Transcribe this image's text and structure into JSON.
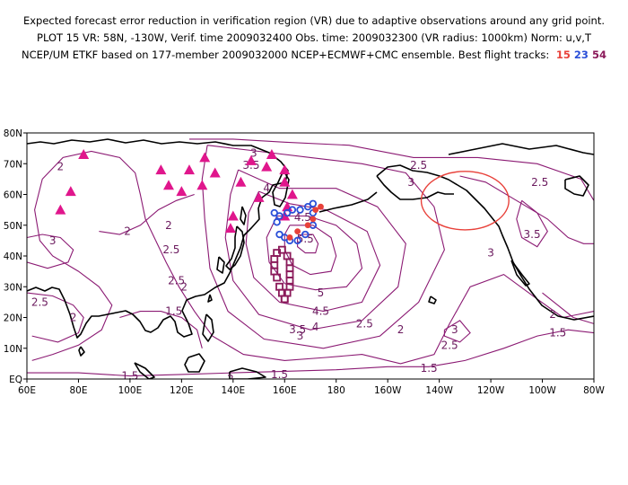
{
  "title": {
    "line1": "Expected forecast error reduction in verification region (VR) due to adaptive observations around any grid point.",
    "line2": "PLOT 15 VR: 58N, -130W, Verif. time 2009032400 Obs. time: 2009032300 (VR radius: 1000km) Norm: u,v,T",
    "line3": "NCEP/UM ETKF based on 177-member 2009032000 NCEP+ECMWF+CMC ensemble. Best flight tracks:",
    "tracks": [
      {
        "label": "15",
        "color": "#e8413a"
      },
      {
        "label": "23",
        "color": "#2a4fd8"
      },
      {
        "label": "54",
        "color": "#8b1a5a"
      }
    ]
  },
  "map": {
    "lon_range": [
      60,
      280
    ],
    "lat_range": [
      0,
      80
    ],
    "x_ticks": [
      "60E",
      "80E",
      "100E",
      "120E",
      "140E",
      "160E",
      "180",
      "160W",
      "140W",
      "120W",
      "100W",
      "80W"
    ],
    "y_ticks": [
      "EQ",
      "10N",
      "20N",
      "30N",
      "40N",
      "50N",
      "60N",
      "70N",
      "80N"
    ],
    "contour_color": "#8b1a73",
    "verification_region_color": "#e8413a",
    "contour_labels": [
      {
        "text": "3",
        "lon": 148,
        "lat": 73.5
      },
      {
        "text": "3.5",
        "lon": 147,
        "lat": 69.5
      },
      {
        "text": "2",
        "lon": 73,
        "lat": 69
      },
      {
        "text": "4",
        "lon": 153,
        "lat": 62
      },
      {
        "text": "4.5",
        "lon": 167,
        "lat": 52.5
      },
      {
        "text": "5.5",
        "lon": 168,
        "lat": 45.5
      },
      {
        "text": "2",
        "lon": 99,
        "lat": 48
      },
      {
        "text": "2",
        "lon": 115,
        "lat": 50
      },
      {
        "text": "3",
        "lon": 70,
        "lat": 45
      },
      {
        "text": "2.5",
        "lon": 116,
        "lat": 42
      },
      {
        "text": "2.5",
        "lon": 118,
        "lat": 32
      },
      {
        "text": "2",
        "lon": 121,
        "lat": 30
      },
      {
        "text": "1.5",
        "lon": 117,
        "lat": 22
      },
      {
        "text": "2.5",
        "lon": 65,
        "lat": 25
      },
      {
        "text": "2",
        "lon": 78,
        "lat": 20
      },
      {
        "text": "5",
        "lon": 174,
        "lat": 28
      },
      {
        "text": "4.5",
        "lon": 174,
        "lat": 22
      },
      {
        "text": "4",
        "lon": 172,
        "lat": 17
      },
      {
        "text": "3.5",
        "lon": 165,
        "lat": 16
      },
      {
        "text": "3",
        "lon": 166,
        "lat": 14
      },
      {
        "text": "2.5",
        "lon": 191,
        "lat": 18
      },
      {
        "text": "2",
        "lon": 205,
        "lat": 16
      },
      {
        "text": "3",
        "lon": 226,
        "lat": 16
      },
      {
        "text": "2.5",
        "lon": 224,
        "lat": 11
      },
      {
        "text": "1.5",
        "lon": 216,
        "lat": 3.5
      },
      {
        "text": "1.5",
        "lon": 158,
        "lat": 1.5
      },
      {
        "text": "2",
        "lon": 139,
        "lat": 0
      },
      {
        "text": "2.5",
        "lon": 212,
        "lat": 69.5
      },
      {
        "text": "3",
        "lon": 209,
        "lat": 64
      },
      {
        "text": "2.5",
        "lon": 259,
        "lat": 64
      },
      {
        "text": "3.5",
        "lon": 256,
        "lat": 47
      },
      {
        "text": "3",
        "lon": 240,
        "lat": 41
      },
      {
        "text": "2",
        "lon": 264,
        "lat": 21
      },
      {
        "text": "1.5",
        "lon": 266,
        "lat": 15
      },
      {
        "text": "1.5",
        "lon": 100,
        "lat": 1
      }
    ],
    "contours": [
      {
        "level": "5.5",
        "points": [
          [
            167,
            47
          ],
          [
            171,
            47
          ],
          [
            173,
            44
          ],
          [
            172,
            41
          ],
          [
            168,
            41
          ],
          [
            165,
            43
          ],
          [
            165,
            46
          ],
          [
            167,
            47
          ]
        ]
      },
      {
        "level": "5",
        "points": [
          [
            162,
            50
          ],
          [
            171,
            50
          ],
          [
            178,
            46
          ],
          [
            180,
            40
          ],
          [
            178,
            35
          ],
          [
            170,
            34
          ],
          [
            163,
            37
          ],
          [
            160,
            42
          ],
          [
            160,
            47
          ],
          [
            162,
            50
          ]
        ]
      },
      {
        "level": "4.5",
        "points": [
          [
            157,
            53
          ],
          [
            169,
            53
          ],
          [
            180,
            50
          ],
          [
            188,
            44
          ],
          [
            190,
            36
          ],
          [
            184,
            30
          ],
          [
            172,
            29
          ],
          [
            160,
            31
          ],
          [
            154,
            38
          ],
          [
            153,
            46
          ],
          [
            157,
            53
          ]
        ]
      },
      {
        "level": "4",
        "points": [
          [
            150,
            61
          ],
          [
            162,
            57
          ],
          [
            176,
            55
          ],
          [
            192,
            48
          ],
          [
            197,
            37
          ],
          [
            190,
            25
          ],
          [
            175,
            22
          ],
          [
            158,
            25
          ],
          [
            148,
            33
          ],
          [
            145,
            44
          ],
          [
            146,
            54
          ],
          [
            150,
            61
          ]
        ]
      },
      {
        "level": "3.5",
        "points": [
          [
            142,
            68
          ],
          [
            158,
            62
          ],
          [
            180,
            62
          ],
          [
            196,
            56
          ],
          [
            207,
            44
          ],
          [
            204,
            30
          ],
          [
            190,
            19
          ],
          [
            170,
            16
          ],
          [
            150,
            21
          ],
          [
            140,
            32
          ],
          [
            137,
            46
          ],
          [
            139,
            60
          ],
          [
            142,
            68
          ]
        ]
      },
      {
        "level": "3",
        "points": [
          [
            130,
            76
          ],
          [
            150,
            74
          ],
          [
            170,
            72
          ],
          [
            190,
            70
          ],
          [
            207,
            67
          ],
          [
            218,
            56
          ],
          [
            222,
            42
          ],
          [
            212,
            25
          ],
          [
            197,
            14
          ],
          [
            175,
            10
          ],
          [
            152,
            13
          ],
          [
            138,
            22
          ],
          [
            131,
            36
          ],
          [
            129,
            52
          ],
          [
            128,
            65
          ],
          [
            130,
            76
          ]
        ]
      },
      {
        "level": "2.5",
        "points": [
          [
            123,
            78
          ],
          [
            140,
            78
          ],
          [
            160,
            77
          ],
          [
            185,
            76
          ],
          [
            210,
            72
          ],
          [
            235,
            72
          ],
          [
            258,
            70
          ],
          [
            275,
            65
          ],
          [
            280,
            58
          ]
        ]
      },
      {
        "level": "2.5b",
        "points": [
          [
            280,
            22
          ],
          [
            268,
            20
          ],
          [
            258,
            26
          ],
          [
            245,
            34
          ],
          [
            232,
            30
          ],
          [
            224,
            18
          ],
          [
            218,
            8
          ],
          [
            205,
            5
          ],
          [
            190,
            8
          ],
          [
            176,
            7
          ],
          [
            160,
            6
          ],
          [
            144,
            8
          ],
          [
            132,
            14
          ],
          [
            125,
            22
          ],
          [
            119,
            30
          ],
          [
            114,
            38
          ],
          [
            110,
            45
          ]
        ]
      },
      {
        "level": "2",
        "points": [
          [
            110,
            45
          ],
          [
            106,
            52
          ],
          [
            104,
            60
          ],
          [
            102,
            67
          ],
          [
            96,
            72
          ],
          [
            85,
            74
          ],
          [
            74,
            72
          ],
          [
            66,
            65
          ],
          [
            63,
            55
          ],
          [
            65,
            45
          ],
          [
            70,
            40
          ],
          [
            80,
            35
          ],
          [
            88,
            30
          ],
          [
            93,
            24
          ],
          [
            89,
            16
          ],
          [
            80,
            11
          ],
          [
            70,
            8
          ],
          [
            62,
            6
          ]
        ]
      },
      {
        "level": "2b",
        "points": [
          [
            125,
            60
          ],
          [
            118,
            58
          ],
          [
            111,
            55
          ],
          [
            104,
            50
          ],
          [
            96,
            47
          ],
          [
            88,
            48
          ]
        ]
      },
      {
        "level": "1.5",
        "points": [
          [
            60,
            2
          ],
          [
            80,
            2
          ],
          [
            100,
            1
          ],
          [
            120,
            1.5
          ],
          [
            140,
            2
          ],
          [
            160,
            2.5
          ],
          [
            180,
            3
          ],
          [
            200,
            4
          ],
          [
            216,
            4
          ],
          [
            230,
            6
          ],
          [
            245,
            10
          ],
          [
            258,
            14
          ],
          [
            270,
            16
          ],
          [
            280,
            15
          ]
        ]
      },
      {
        "level": "1.5b",
        "points": [
          [
            96,
            20
          ],
          [
            104,
            22
          ],
          [
            112,
            22
          ],
          [
            120,
            20
          ],
          [
            126,
            16
          ],
          [
            128,
            10
          ]
        ]
      },
      {
        "level": "3c",
        "points": [
          [
            60,
            46
          ],
          [
            66,
            47
          ],
          [
            73,
            46
          ],
          [
            78,
            42
          ],
          [
            76,
            38
          ],
          [
            68,
            36
          ],
          [
            60,
            38
          ]
        ]
      },
      {
        "level": "2.5c",
        "points": [
          [
            60,
            28
          ],
          [
            70,
            27
          ],
          [
            78,
            24
          ],
          [
            82,
            20
          ],
          [
            80,
            15
          ],
          [
            72,
            12
          ],
          [
            62,
            14
          ]
        ]
      },
      {
        "level": "3d",
        "points": [
          [
            228,
            66
          ],
          [
            238,
            64
          ],
          [
            250,
            58
          ],
          [
            262,
            52
          ],
          [
            270,
            46
          ],
          [
            276,
            44
          ],
          [
            280,
            44
          ]
        ]
      },
      {
        "level": "3.5d",
        "points": [
          [
            252,
            58
          ],
          [
            258,
            54
          ],
          [
            262,
            48
          ],
          [
            258,
            43
          ],
          [
            252,
            46
          ],
          [
            250,
            52
          ],
          [
            252,
            58
          ]
        ]
      },
      {
        "level": "2d",
        "points": [
          [
            260,
            28
          ],
          [
            266,
            24
          ],
          [
            272,
            20
          ],
          [
            280,
            18
          ]
        ]
      },
      {
        "level": "3e",
        "points": [
          [
            222,
            16
          ],
          [
            228,
            19
          ],
          [
            232,
            15
          ],
          [
            228,
            12
          ],
          [
            222,
            14
          ],
          [
            222,
            16
          ]
        ]
      }
    ],
    "verification_region": {
      "center": [
        230,
        58
      ],
      "r_lon": 17,
      "r_lat": 9.5
    },
    "triangles": [
      [
        82,
        73
      ],
      [
        77,
        61
      ],
      [
        73,
        55
      ],
      [
        112,
        68
      ],
      [
        115,
        63
      ],
      [
        120,
        61
      ],
      [
        123,
        68
      ],
      [
        128,
        63
      ],
      [
        129,
        72
      ],
      [
        133,
        67
      ],
      [
        143,
        64
      ],
      [
        147,
        71
      ],
      [
        150,
        59
      ],
      [
        153,
        69
      ],
      [
        155,
        73
      ],
      [
        160,
        68
      ],
      [
        160,
        64
      ],
      [
        163,
        60
      ],
      [
        161,
        56
      ],
      [
        160,
        53
      ],
      [
        140,
        53
      ],
      [
        139,
        49
      ]
    ],
    "track_15": [
      [
        162,
        46
      ],
      [
        165,
        48
      ],
      [
        169,
        50
      ],
      [
        171,
        52
      ],
      [
        172,
        55
      ],
      [
        174,
        56
      ]
    ],
    "track_23": [
      [
        156,
        54
      ],
      [
        158,
        53
      ],
      [
        161,
        54
      ],
      [
        163,
        55
      ],
      [
        166,
        55
      ],
      [
        169,
        56
      ],
      [
        171,
        57
      ],
      [
        171,
        50
      ],
      [
        168,
        47
      ],
      [
        165,
        45
      ],
      [
        162,
        45
      ],
      [
        160,
        46
      ],
      [
        158,
        47
      ],
      [
        157,
        51
      ],
      [
        171,
        54
      ]
    ],
    "track_54": [
      [
        160,
        26
      ],
      [
        161,
        28
      ],
      [
        162,
        30
      ],
      [
        162,
        32
      ],
      [
        162,
        34
      ],
      [
        162,
        36
      ],
      [
        162,
        38
      ],
      [
        161,
        40
      ],
      [
        159,
        42
      ],
      [
        157,
        41
      ],
      [
        156,
        39
      ],
      [
        156,
        37
      ],
      [
        156,
        35
      ],
      [
        157,
        33
      ],
      [
        158,
        30
      ],
      [
        159,
        28
      ],
      [
        160,
        26
      ]
    ]
  }
}
